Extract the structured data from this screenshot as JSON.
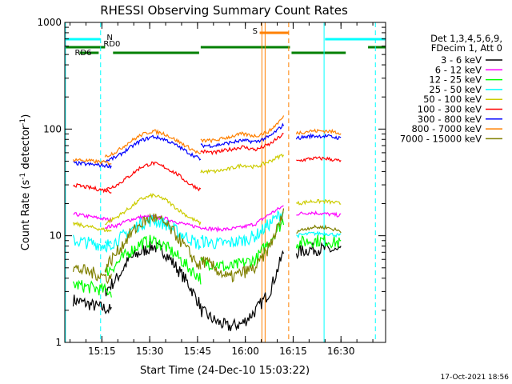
{
  "chart_data": {
    "type": "line",
    "title": "RHESSI Observing Summary Count Rates",
    "xlabel": "Start Time (24-Dec-10 15:03:22)",
    "ylabel_main": "Count Rate (s",
    "ylabel_sup1": "-1",
    "ylabel_mid": " detector",
    "ylabel_sup2": "-1",
    "ylabel_end": ")",
    "yscale": "log",
    "ylim": [
      1,
      1000
    ],
    "xlim": [
      "15:03:22",
      "16:44:00"
    ],
    "x_ticks": [
      "15:15",
      "15:30",
      "15:45",
      "16:00",
      "16:15",
      "16:30"
    ],
    "y_ticks": [
      "1",
      "10",
      "100",
      "1000"
    ],
    "legend_header": [
      "Det 1,3,4,5,6,9,",
      "FDecim 1, Att 0"
    ],
    "legend_position": "right",
    "footer": "17-Oct-2021 18:56",
    "flags": {
      "n_label": "N",
      "rd0_label": "RD0",
      "rd6_label": "RD6",
      "s_label": "S"
    },
    "segments": [
      {
        "start": "15:06",
        "end": "15:18"
      },
      {
        "start": "15:16",
        "end": "15:46"
      },
      {
        "start": "15:46",
        "end": "16:12"
      },
      {
        "start": "16:16",
        "end": "16:30"
      }
    ],
    "series": [
      {
        "name": "3 - 6 keV",
        "color": "#000000",
        "values": [
          [
            2.5,
            2
          ],
          [
            3,
            4,
            6,
            7,
            8,
            7,
            5,
            3.5,
            2.2
          ],
          [
            2,
            1.6,
            1.4,
            1.5,
            2,
            3,
            7
          ],
          [
            7,
            7.5,
            7.5,
            7
          ]
        ]
      },
      {
        "name": "6 - 12 keV",
        "color": "#ff00ff",
        "values": [
          [
            16,
            14
          ],
          [
            12,
            12.5,
            14,
            15,
            15,
            14.5,
            13.5,
            12.5,
            12
          ],
          [
            12,
            11.5,
            11.5,
            12,
            13,
            16,
            19
          ],
          [
            16,
            16.5,
            16,
            15.5
          ]
        ]
      },
      {
        "name": "12 - 25 keV",
        "color": "#00ff00",
        "values": [
          [
            3.5,
            3
          ],
          [
            4.5,
            5.5,
            7,
            8.5,
            9,
            8,
            6.5,
            5,
            4
          ],
          [
            5.5,
            5.5,
            5,
            5.5,
            6,
            9,
            14
          ],
          [
            8.5,
            9,
            9,
            8.5
          ]
        ]
      },
      {
        "name": "25 - 50 keV",
        "color": "#00ffff",
        "values": [
          [
            9,
            8
          ],
          [
            8,
            9,
            11,
            13,
            14,
            13,
            11,
            9.5,
            8
          ],
          [
            9,
            8.5,
            8.5,
            9,
            10,
            13,
            17
          ],
          [
            10,
            10.5,
            10.5,
            10
          ]
        ]
      },
      {
        "name": "50 - 100 keV",
        "color": "#cccc00",
        "values": [
          [
            13,
            11
          ],
          [
            13,
            15,
            18,
            22,
            24,
            22,
            18,
            15,
            13
          ],
          [
            40,
            40,
            42,
            46,
            44,
            50,
            58
          ],
          [
            20,
            21,
            21,
            20
          ]
        ]
      },
      {
        "name": "100 - 300 keV",
        "color": "#ff0000",
        "values": [
          [
            30,
            26
          ],
          [
            27,
            30,
            36,
            44,
            48,
            44,
            38,
            31,
            27
          ],
          [
            62,
            60,
            64,
            68,
            64,
            72,
            90
          ],
          [
            50,
            53,
            53,
            50
          ]
        ]
      },
      {
        "name": "300 - 800 keV",
        "color": "#0000ff",
        "values": [
          [
            48,
            45
          ],
          [
            50,
            55,
            66,
            78,
            85,
            80,
            70,
            60,
            52
          ],
          [
            70,
            70,
            74,
            78,
            76,
            85,
            110
          ],
          [
            82,
            86,
            86,
            82
          ]
        ]
      },
      {
        "name": "800 - 7000 keV",
        "color": "#ff8000",
        "values": [
          [
            52,
            48
          ],
          [
            55,
            62,
            75,
            88,
            96,
            90,
            78,
            67,
            58
          ],
          [
            78,
            78,
            84,
            90,
            86,
            96,
            130
          ],
          [
            92,
            96,
            96,
            92
          ]
        ]
      },
      {
        "name": "7000 - 15000 keV",
        "color": "#808000",
        "values": [
          [
            5,
            4
          ],
          [
            5,
            7,
            10,
            13,
            15,
            13,
            10,
            7,
            5
          ],
          [
            6,
            5,
            4,
            4.5,
            5,
            8,
            16
          ],
          [
            11,
            12,
            12,
            11
          ]
        ]
      }
    ]
  }
}
